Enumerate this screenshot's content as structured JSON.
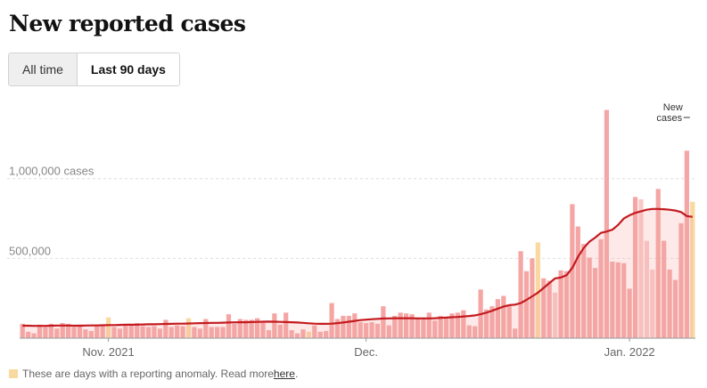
{
  "title": "New reported cases",
  "toggle": {
    "all_time": "All time",
    "last_90_days": "Last 90 days"
  },
  "footnote": {
    "text": "These are days with a reporting anomaly. Read more ",
    "link": "here",
    "period": "."
  },
  "colors": {
    "bar": "#f4a6a5",
    "bar_light": "#f8c9c8",
    "anomaly": "#f9d9a0",
    "line": "#c41a1f",
    "grid": "#dddddd",
    "axis_text": "#666666"
  },
  "chart_data": {
    "type": "bar",
    "title": "New reported cases",
    "ylim": [
      0,
      1450000
    ],
    "yticks": [
      {
        "value": 500000,
        "label": "500,000"
      },
      {
        "value": 1000000,
        "label": "1,000,000 cases"
      }
    ],
    "xticks": [
      {
        "index": 15,
        "label": "Nov. 2021"
      },
      {
        "index": 60,
        "label": "Dec."
      },
      {
        "index": 106,
        "label": "Jan. 2022"
      }
    ],
    "grid": true,
    "annotation": {
      "text_line1": "New",
      "text_line2": "cases",
      "index": 117
    },
    "legend": "bottom-left",
    "values": [
      90000,
      40000,
      30000,
      85000,
      70000,
      90000,
      60000,
      95000,
      90000,
      70000,
      85000,
      55000,
      45000,
      80000,
      75000,
      130000,
      70000,
      60000,
      85000,
      85000,
      95000,
      75000,
      70000,
      75000,
      60000,
      115000,
      70000,
      80000,
      75000,
      125000,
      70000,
      60000,
      120000,
      70000,
      70000,
      70000,
      150000,
      90000,
      120000,
      115000,
      115000,
      125000,
      100000,
      50000,
      155000,
      85000,
      160000,
      50000,
      30000,
      55000,
      40000,
      80000,
      40000,
      45000,
      220000,
      120000,
      140000,
      140000,
      155000,
      100000,
      95000,
      100000,
      90000,
      200000,
      80000,
      140000,
      160000,
      155000,
      150000,
      130000,
      130000,
      160000,
      110000,
      140000,
      130000,
      155000,
      160000,
      175000,
      80000,
      75000,
      305000,
      180000,
      200000,
      245000,
      265000,
      200000,
      60000,
      545000,
      420000,
      500000,
      600000,
      375000,
      360000,
      285000,
      425000,
      420000,
      840000,
      700000,
      590000,
      505000,
      440000,
      620000,
      1430000,
      480000,
      475000,
      470000,
      310000,
      885000,
      870000,
      610000,
      430000,
      935000,
      610000,
      430000,
      365000,
      720000,
      1175000,
      855000
    ],
    "anomalies": [
      15,
      29,
      50,
      90,
      117
    ],
    "light_bars": [
      93,
      108,
      109,
      110
    ],
    "moving_average": [
      78000,
      78000,
      77000,
      77000,
      77000,
      78000,
      79000,
      79000,
      79000,
      78000,
      78000,
      79000,
      80000,
      80000,
      81000,
      82000,
      82000,
      83000,
      84000,
      84000,
      85000,
      86000,
      87000,
      87000,
      88000,
      89000,
      90000,
      91000,
      91000,
      92000,
      93000,
      94000,
      95000,
      96000,
      96000,
      97000,
      98000,
      99000,
      100000,
      100000,
      101000,
      102000,
      103000,
      104000,
      103000,
      102000,
      101000,
      100000,
      98000,
      96000,
      93000,
      91000,
      90000,
      90000,
      91000,
      94000,
      98000,
      103000,
      108000,
      113000,
      116000,
      119000,
      121000,
      123000,
      124000,
      125000,
      125000,
      125000,
      125000,
      124000,
      124000,
      124000,
      125000,
      127000,
      129000,
      131000,
      133000,
      136000,
      139000,
      143000,
      150000,
      160000,
      172000,
      185000,
      198000,
      207000,
      210000,
      220000,
      240000,
      262000,
      285000,
      315000,
      345000,
      375000,
      380000,
      395000,
      440000,
      510000,
      565000,
      605000,
      630000,
      660000,
      668000,
      680000,
      710000,
      750000,
      770000,
      785000,
      795000,
      805000,
      810000,
      810000,
      808000,
      805000,
      800000,
      790000,
      765000,
      760000
    ]
  }
}
